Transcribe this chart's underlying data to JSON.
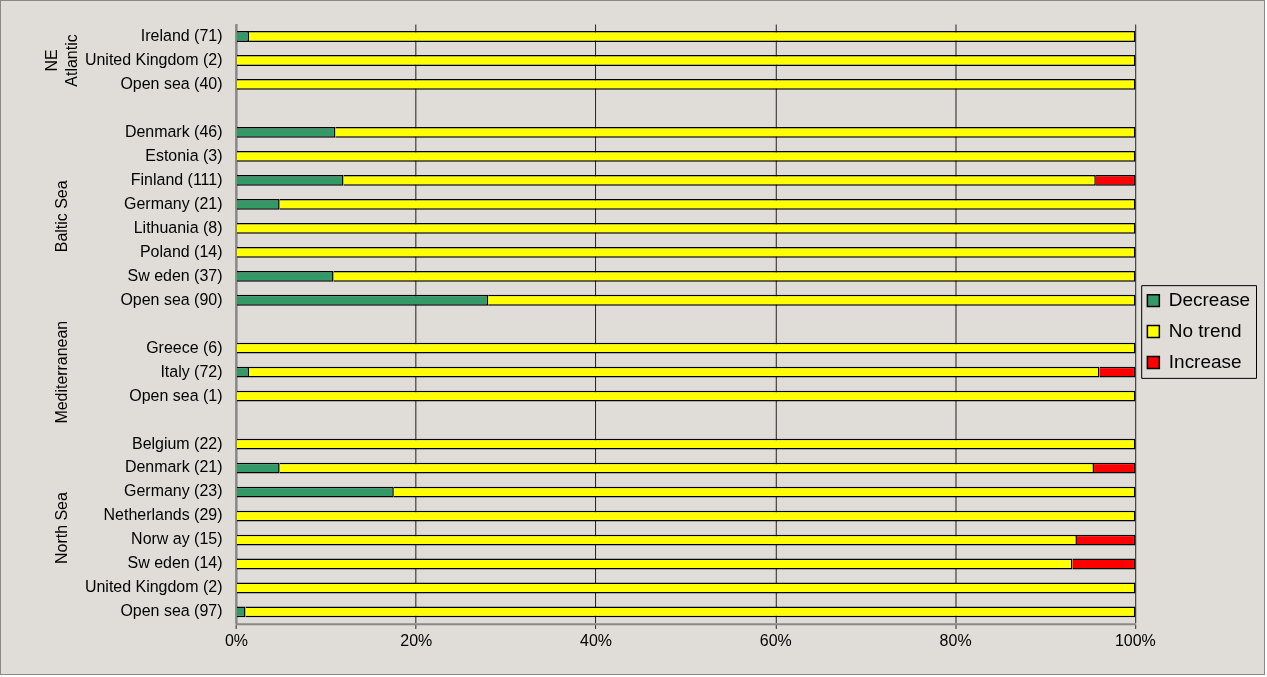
{
  "chart_data": {
    "type": "bar",
    "orientation": "horizontal",
    "stacked": true,
    "categories": [
      "Ireland (71)",
      "United Kingdom (2)",
      "Open sea (40)",
      null,
      "Denmark (46)",
      "Estonia (3)",
      "Finland (111)",
      "Germany (21)",
      "Lithuania (8)",
      "Poland (14)",
      "Sw eden (37)",
      "Open sea (90)",
      null,
      "Greece (6)",
      "Italy (72)",
      "Open sea (1)",
      null,
      "Belgium (22)",
      "Denmark (21)",
      "Germany (23)",
      "Netherlands (29)",
      "Norw ay (15)",
      "Sw eden (14)",
      "United Kingdom (2)",
      "Open sea (97)"
    ],
    "series": [
      {
        "name": "Decrease",
        "color": "#339966",
        "values": [
          1.4,
          0,
          0,
          null,
          11.0,
          0,
          11.9,
          4.8,
          0,
          0,
          10.8,
          28.0,
          null,
          0,
          1.4,
          0,
          null,
          0,
          4.8,
          17.5,
          0,
          0,
          0,
          0,
          1.0
        ]
      },
      {
        "name": "No trend",
        "color": "#ffff00",
        "values": [
          98.6,
          100,
          100,
          null,
          89.0,
          100,
          83.7,
          95.2,
          100,
          100,
          89.2,
          72.0,
          null,
          100,
          94.6,
          100,
          null,
          100,
          90.6,
          82.5,
          100,
          93.5,
          93.0,
          100,
          99.0
        ]
      },
      {
        "name": "Increase",
        "color": "#ff0000",
        "values": [
          0,
          0,
          0,
          null,
          0,
          0,
          4.4,
          0,
          0,
          0,
          0,
          0,
          null,
          0,
          4.0,
          0,
          null,
          0,
          4.6,
          0,
          0,
          6.5,
          7.0,
          0,
          0
        ]
      }
    ],
    "xlim": [
      0,
      100
    ],
    "xticks": [
      {
        "value": 0,
        "label": "0%"
      },
      {
        "value": 20,
        "label": "20%"
      },
      {
        "value": 40,
        "label": "40%"
      },
      {
        "value": 60,
        "label": "60%"
      },
      {
        "value": 80,
        "label": "80%"
      },
      {
        "value": 100,
        "label": "100%"
      }
    ],
    "grid": "x",
    "legend": "right",
    "annotations": [
      "NE Atlantic",
      "Baltic Sea",
      "Mediterranean",
      "North Sea"
    ]
  }
}
